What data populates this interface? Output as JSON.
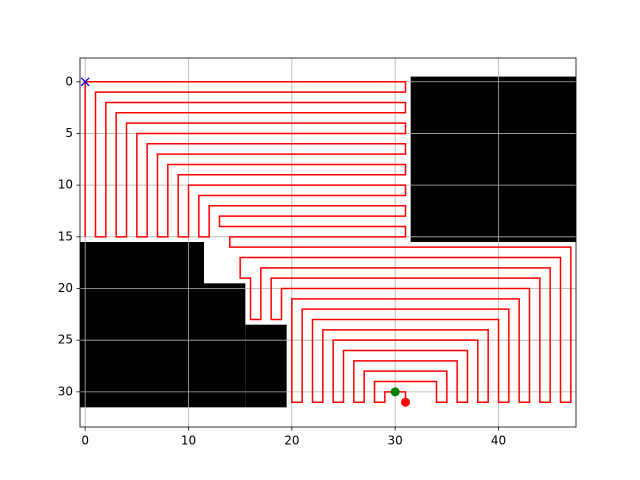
{
  "chart_data": {
    "type": "line",
    "xlim": [
      -0.5,
      47.5
    ],
    "ylim": [
      33.4,
      -2.3
    ],
    "xticks": [
      0,
      10,
      20,
      30,
      40
    ],
    "yticks": [
      0,
      5,
      10,
      15,
      20,
      25,
      30
    ],
    "grid": true,
    "obstacle_color": "#000000",
    "obstacles": [
      {
        "x0": 31.5,
        "x1": 47.5,
        "y0": -0.5,
        "y1": 15.5
      },
      {
        "x0": -0.5,
        "x1": 11.5,
        "y0": 15.5,
        "y1": 31.5
      },
      {
        "x0": 11.5,
        "x1": 15.5,
        "y0": 19.5,
        "y1": 31.5
      },
      {
        "x0": 15.5,
        "x1": 19.5,
        "y0": 23.5,
        "y1": 31.5
      }
    ],
    "path": {
      "color": "#ff0000",
      "x": [
        0,
        0,
        31,
        31,
        1,
        1,
        2,
        2,
        31,
        31,
        3,
        3,
        4,
        4,
        31,
        31,
        5,
        5,
        6,
        6,
        31,
        31,
        7,
        7,
        8,
        8,
        31,
        31,
        9,
        9,
        10,
        10,
        31,
        31,
        11,
        11,
        12,
        12,
        31,
        31,
        13,
        13,
        31,
        31,
        14,
        14,
        47,
        47,
        46,
        46,
        15,
        15,
        16,
        16,
        17,
        17,
        45,
        45,
        44,
        44,
        18,
        18,
        19,
        19,
        43,
        43,
        42,
        42,
        20,
        20,
        21,
        21,
        41,
        41,
        40,
        40,
        22,
        22,
        23,
        23,
        39,
        39,
        38,
        38,
        24,
        24,
        25,
        25,
        37,
        37,
        36,
        36,
        26,
        26,
        27,
        27,
        35,
        35,
        34,
        34,
        28,
        28,
        29,
        29,
        31,
        31
      ],
      "y": [
        15,
        0,
        0,
        1,
        1,
        15,
        15,
        2,
        2,
        3,
        3,
        15,
        15,
        4,
        4,
        5,
        5,
        15,
        15,
        6,
        6,
        7,
        7,
        15,
        15,
        8,
        8,
        9,
        9,
        15,
        15,
        10,
        10,
        11,
        11,
        15,
        15,
        12,
        12,
        13,
        13,
        14,
        14,
        15,
        15,
        16,
        16,
        31,
        31,
        17,
        17,
        19,
        19,
        23,
        23,
        18,
        18,
        31,
        31,
        19,
        19,
        23,
        23,
        20,
        20,
        31,
        31,
        21,
        21,
        31,
        31,
        22,
        22,
        31,
        31,
        23,
        23,
        31,
        31,
        24,
        24,
        31,
        31,
        25,
        25,
        31,
        31,
        26,
        26,
        31,
        31,
        27,
        27,
        31,
        31,
        28,
        28,
        31,
        31,
        29,
        29,
        31,
        31,
        30,
        30,
        31
      ]
    },
    "markers": [
      {
        "x": 0,
        "y": 0,
        "color": "#0000ff",
        "marker": "x"
      },
      {
        "x": 30,
        "y": 30,
        "color": "#008000",
        "marker": "o"
      },
      {
        "x": 31,
        "y": 31,
        "color": "#ff0000",
        "marker": "o"
      }
    ]
  }
}
